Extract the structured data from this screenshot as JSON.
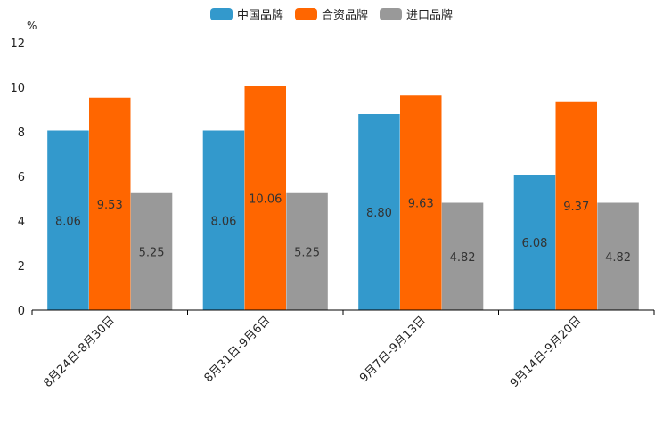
{
  "chart_data": {
    "type": "bar",
    "unit": "%",
    "categories": [
      "8月24日-8月30日",
      "8月31日-9月6日",
      "9月7日-9月13日",
      "9月14日-9月20日"
    ],
    "series": [
      {
        "name": "中国品牌",
        "color": "#3399cc",
        "values": [
          8.06,
          8.06,
          8.8,
          6.08
        ]
      },
      {
        "name": "合资品牌",
        "color": "#ff6600",
        "values": [
          9.53,
          10.06,
          9.63,
          9.37
        ]
      },
      {
        "name": "进口品牌",
        "color": "#999999",
        "values": [
          5.25,
          5.25,
          4.82,
          4.82
        ]
      }
    ],
    "value_labels": [
      [
        "8.06",
        "8.06",
        "8.80",
        "6.08"
      ],
      [
        "9.53",
        "10.06",
        "9.63",
        "9.37"
      ],
      [
        "5.25",
        "5.25",
        "4.82",
        "4.82"
      ]
    ],
    "yticks": [
      "0",
      "2",
      "4",
      "6",
      "8",
      "10",
      "12"
    ],
    "ylim": [
      0,
      12
    ],
    "legend_position": "top-center",
    "grid": false
  }
}
